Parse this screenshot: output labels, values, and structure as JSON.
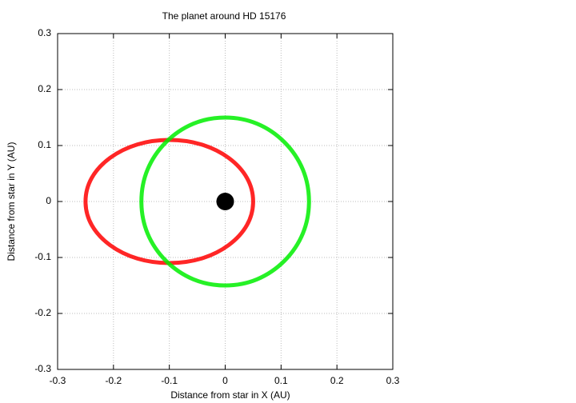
{
  "chart_data": {
    "type": "orbit",
    "title": "The planet around HD 15176",
    "xlabel": "Distance from star in X (AU)",
    "ylabel": "Distance from star in Y (AU)",
    "xlim": [
      -0.3,
      0.3
    ],
    "ylim": [
      -0.3,
      0.3
    ],
    "xticks": [
      -0.3,
      -0.2,
      -0.1,
      0,
      0.1,
      0.2,
      0.3
    ],
    "yticks": [
      -0.3,
      -0.2,
      -0.1,
      0,
      0.1,
      0.2,
      0.3
    ],
    "grid": true,
    "series": [
      {
        "style": "closed-line",
        "color": "#ff0000",
        "x": [
          0.05,
          0.039,
          0.006,
          -0.043,
          -0.1,
          -0.157,
          -0.206,
          -0.239,
          -0.25,
          -0.239,
          -0.206,
          -0.157,
          -0.1,
          -0.043,
          0.006,
          0.039
        ],
        "y": [
          0,
          0.042,
          0.078,
          0.102,
          0.11,
          0.102,
          0.078,
          0.042,
          0,
          -0.042,
          -0.078,
          -0.102,
          -0.11,
          -0.102,
          -0.078,
          -0.042
        ]
      },
      {
        "style": "closed-line",
        "color": "#00ee00",
        "x": [
          0.15,
          0.139,
          0.106,
          0.057,
          0,
          -0.057,
          -0.106,
          -0.139,
          -0.15,
          -0.139,
          -0.106,
          -0.057,
          0,
          0.057,
          0.106,
          0.139
        ],
        "y": [
          0,
          0.057,
          0.106,
          0.139,
          0.15,
          0.139,
          0.106,
          0.057,
          0,
          -0.057,
          -0.106,
          -0.139,
          -0.15,
          -0.139,
          -0.106,
          -0.057
        ]
      },
      {
        "style": "point",
        "color": "#000000",
        "x": [
          0
        ],
        "y": [
          0
        ]
      }
    ]
  }
}
